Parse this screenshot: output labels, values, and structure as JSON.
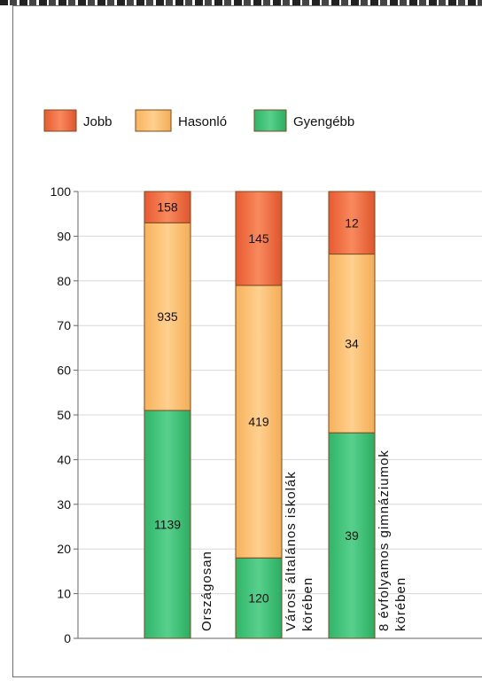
{
  "chart_data": {
    "type": "bar",
    "stacked": true,
    "categories": [
      [
        "Országosan"
      ],
      [
        "Városi általános iskolák",
        "körében"
      ],
      [
        "8 évfolyamos gimnáziumok",
        "körében"
      ]
    ],
    "series": [
      {
        "name": "Gyengébb",
        "color": "#3cbf73",
        "percent": [
          51,
          18,
          46
        ],
        "labels": [
          "1139",
          "120",
          "39"
        ]
      },
      {
        "name": "Hasonló",
        "color": "#fbbd6b",
        "percent": [
          42,
          61,
          40
        ],
        "labels": [
          "935",
          "419",
          "34"
        ]
      },
      {
        "name": "Jobb",
        "color": "#f36e45",
        "percent": [
          7,
          21,
          14
        ],
        "labels": [
          "158",
          "145",
          "12"
        ]
      }
    ],
    "legend": [
      "Jobb",
      "Hasonló",
      "Gyengébb"
    ],
    "legend_position": "top-left",
    "ylim": [
      0,
      100
    ],
    "yticks": [
      0,
      10,
      20,
      30,
      40,
      50,
      60,
      70,
      80,
      90,
      100
    ],
    "grid": true,
    "title": "",
    "xlabel": "",
    "ylabel": ""
  }
}
